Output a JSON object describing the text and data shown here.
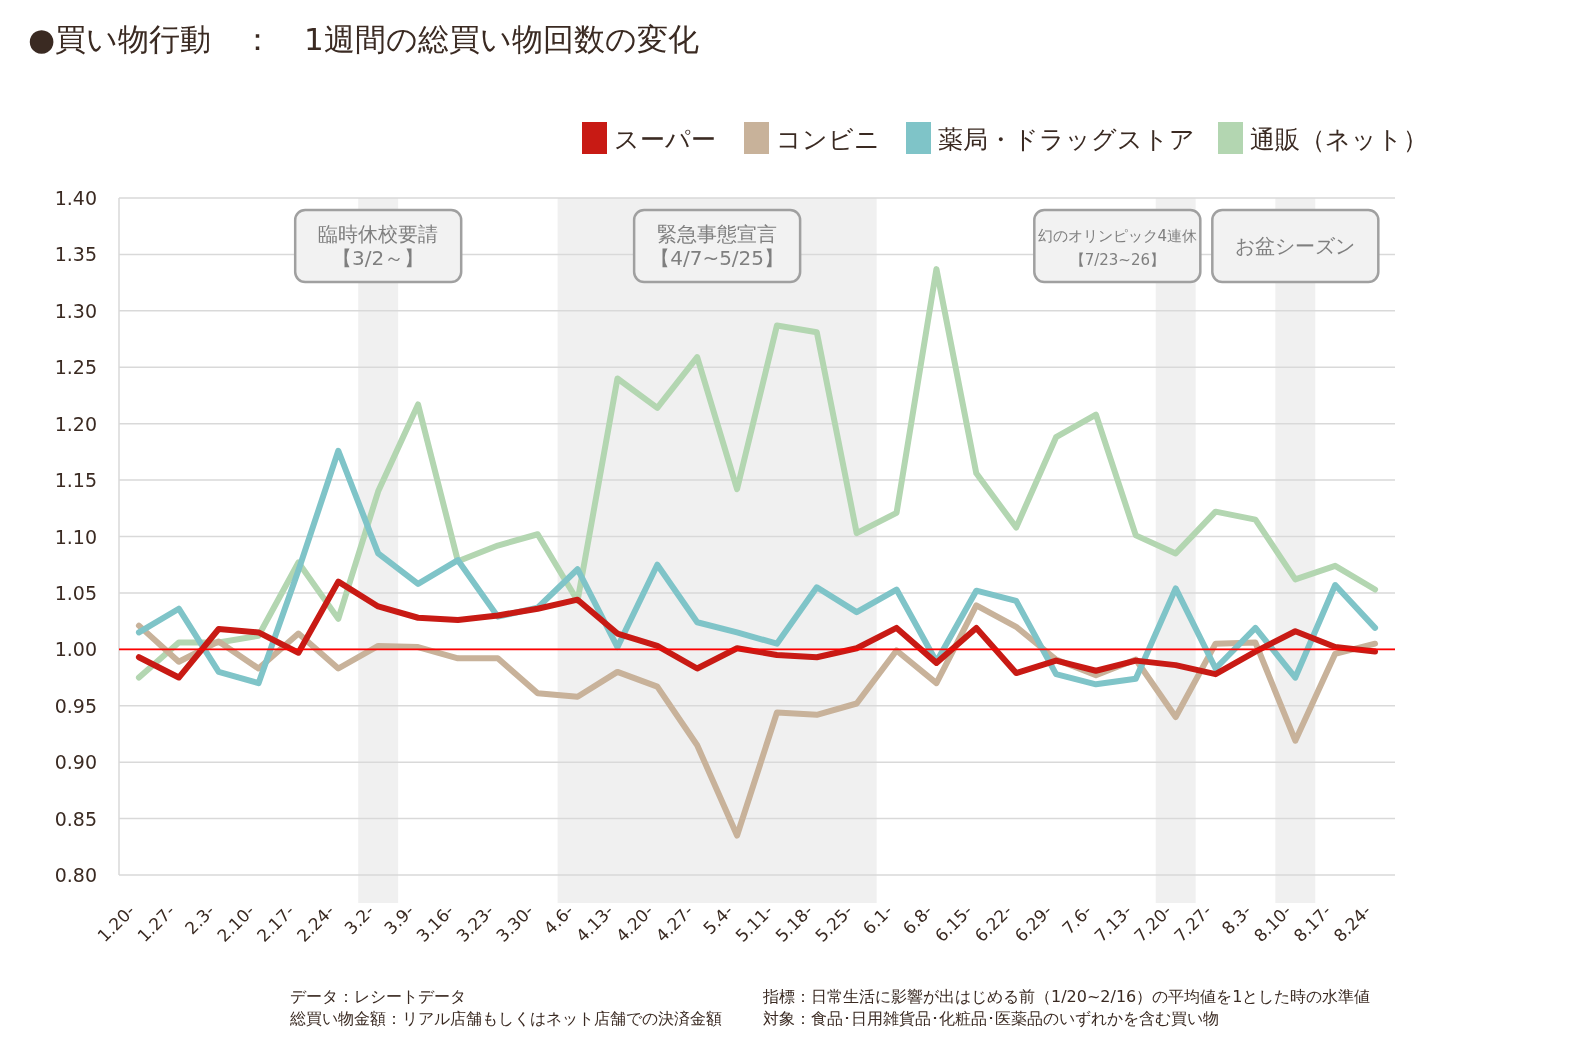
{
  "chart_data": {
    "type": "line",
    "title": "●買い物行動　：　1週間の総買い物回数の変化",
    "categories": [
      "1.20-",
      "1.27-",
      "2.3-",
      "2.10-",
      "2.17-",
      "2.24-",
      "3.2-",
      "3.9-",
      "3.16-",
      "3.23-",
      "3.30-",
      "4.6-",
      "4.13-",
      "4.20-",
      "4.27-",
      "5.4-",
      "5.11-",
      "5.18-",
      "5.25-",
      "6.1-",
      "6.8-",
      "6.15-",
      "6.22-",
      "6.29-",
      "7.6-",
      "7.13-",
      "7.20-",
      "7.27-",
      "8.3-",
      "8.10-",
      "8.17-",
      "8.24-"
    ],
    "series": [
      {
        "name": "スーパー",
        "color": "#c81a14",
        "values": [
          0.993,
          0.975,
          1.018,
          1.015,
          0.997,
          1.06,
          1.038,
          1.028,
          1.026,
          1.03,
          1.036,
          1.044,
          1.014,
          1.003,
          0.983,
          1.001,
          0.995,
          0.993,
          1.001,
          1.019,
          0.988,
          1.019,
          0.979,
          0.99,
          0.981,
          0.99,
          0.986,
          0.978,
          0.998,
          1.016,
          1.002,
          0.998
        ]
      },
      {
        "name": "コンビニ",
        "color": "#c8b29a",
        "values": [
          1.021,
          0.989,
          1.007,
          0.983,
          1.014,
          0.983,
          1.003,
          1.002,
          0.992,
          0.992,
          0.961,
          0.958,
          0.98,
          0.967,
          0.915,
          0.835,
          0.944,
          0.942,
          0.952,
          0.999,
          0.97,
          1.039,
          1.02,
          0.991,
          0.977,
          0.991,
          0.94,
          1.005,
          1.006,
          0.919,
          0.996,
          1.005
        ]
      },
      {
        "name": "薬局・ドラッグストア",
        "color": "#7fc4c8",
        "values": [
          1.015,
          1.036,
          0.98,
          0.97,
          1.07,
          1.176,
          1.085,
          1.058,
          1.079,
          1.029,
          1.037,
          1.071,
          1.002,
          1.075,
          1.024,
          1.015,
          1.005,
          1.055,
          1.033,
          1.053,
          0.989,
          1.052,
          1.043,
          0.978,
          0.969,
          0.974,
          1.054,
          0.983,
          1.019,
          0.975,
          1.057,
          1.019
        ]
      },
      {
        "name": "通販（ネット）",
        "color": "#b3d6b1",
        "values": [
          0.975,
          1.006,
          1.006,
          1.012,
          1.077,
          1.027,
          1.14,
          1.217,
          1.078,
          1.092,
          1.102,
          1.043,
          1.24,
          1.214,
          1.259,
          1.142,
          1.287,
          1.281,
          1.103,
          1.121,
          1.337,
          1.156,
          1.108,
          1.188,
          1.208,
          1.101,
          1.085,
          1.122,
          1.115,
          1.062,
          1.074,
          1.053
        ]
      }
    ],
    "ylim": [
      0.8,
      1.4
    ],
    "yticks": [
      {
        "value": 0.8,
        "label": "0.80"
      },
      {
        "value": 0.85,
        "label": "0.85"
      },
      {
        "value": 0.9,
        "label": "0.90"
      },
      {
        "value": 0.95,
        "label": "0.95"
      },
      {
        "value": 1.0,
        "label": "1.00"
      },
      {
        "value": 1.05,
        "label": "1.05"
      },
      {
        "value": 1.1,
        "label": "1.10"
      },
      {
        "value": 1.15,
        "label": "1.15"
      },
      {
        "value": 1.2,
        "label": "1.20"
      },
      {
        "value": 1.25,
        "label": "1.25"
      },
      {
        "value": 1.3,
        "label": "1.30"
      },
      {
        "value": 1.35,
        "label": "1.35"
      },
      {
        "value": 1.4,
        "label": "1.40"
      }
    ],
    "grid": "y",
    "legend": "top right",
    "marker": "none",
    "line_style": "solid",
    "ref_lines": [
      {
        "axis": "y",
        "value": 1.0,
        "color": "#ff0000"
      }
    ],
    "bands": [
      {
        "axis": "x",
        "from": "3.2-",
        "to": "3.2-",
        "label": "臨時休校要請【3/2～】",
        "color": "#f0f0f0"
      },
      {
        "axis": "x",
        "from": "4.6-",
        "to": "5.25-",
        "label": "緊急事態宣言【4/7~5/25】",
        "color": "#f0f0f0"
      },
      {
        "axis": "x",
        "from": "7.20-",
        "to": "7.20-",
        "label": "幻のオリンピック4連休【7/23~26】",
        "color": "#f0f0f0"
      },
      {
        "axis": "x",
        "from": "8.10-",
        "to": "8.10-",
        "label": "お盆シーズン",
        "color": "#f0f0f0"
      }
    ],
    "annotations": [
      "データ：レシートデータ",
      "総買い物金額：リアル店舗もしくはネット店舗での決済金額",
      "指標：日常生活に影響が出はじめる前（1/20~2/16）の平均値を1とした時の水準値",
      "対象：食品･日用雑貨品･化粧品･医薬品のいずれかを含む買い物"
    ]
  }
}
